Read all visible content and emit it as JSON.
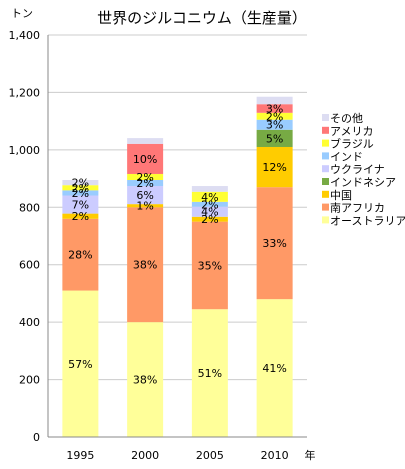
{
  "chart_data": {
    "type": "bar",
    "stacked": true,
    "title": "世界のジルコニウム（生産量）",
    "ylabel": "トン",
    "xlabel": "年",
    "ylim": [
      0,
      1400
    ],
    "yticks": [
      "0",
      "200",
      "400",
      "600",
      "800",
      "1,000",
      "1,200",
      "1,400"
    ],
    "ytick_values": [
      0,
      200,
      400,
      600,
      800,
      1000,
      1200,
      1400
    ],
    "grid": true,
    "legend_position": "right",
    "categories": [
      "1995",
      "2000",
      "2005",
      "2010"
    ],
    "series": [
      {
        "name": "オーストラリア",
        "color": "#ffff99",
        "values": [
          510,
          400,
          445,
          480
        ],
        "labels": [
          "57%",
          "38%",
          "51%",
          "41%"
        ]
      },
      {
        "name": "南アフリカ",
        "color": "#ff9966",
        "values": [
          250,
          400,
          305,
          390
        ],
        "labels": [
          "28%",
          "38%",
          "35%",
          "33%"
        ]
      },
      {
        "name": "中国",
        "color": "#ffcc00",
        "values": [
          18,
          11,
          17,
          140
        ],
        "labels": [
          "2%",
          "1%",
          "2%",
          "12%"
        ]
      },
      {
        "name": "インドネシア",
        "color": "#77aa44",
        "values": [
          0,
          0,
          0,
          60
        ],
        "labels": [
          "",
          "",
          "",
          "5%"
        ]
      },
      {
        "name": "ウクライナ",
        "color": "#ccccff",
        "values": [
          63,
          63,
          35,
          0
        ],
        "labels": [
          "7%",
          "6%",
          "4%",
          ""
        ]
      },
      {
        "name": "インド",
        "color": "#99ccff",
        "values": [
          18,
          21,
          17,
          35
        ],
        "labels": [
          "2%",
          "2%",
          "2%",
          "3%"
        ]
      },
      {
        "name": "ブラジル",
        "color": "#ffff33",
        "values": [
          18,
          21,
          35,
          24
        ],
        "labels": [
          "2%",
          "2%",
          "4%",
          "2%"
        ]
      },
      {
        "name": "アメリカ",
        "color": "#ff7777",
        "values": [
          0,
          105,
          0,
          30
        ],
        "labels": [
          "",
          "10%",
          "",
          "3%"
        ]
      },
      {
        "name": "その他",
        "color": "#ddddf2",
        "values": [
          18,
          20,
          20,
          26
        ],
        "labels": [
          "2%",
          "",
          "",
          ""
        ]
      }
    ],
    "legend_order": [
      "その他",
      "アメリカ",
      "ブラジル",
      "インド",
      "ウクライナ",
      "インドネシア",
      "中国",
      "南アフリカ",
      "オーストラリア"
    ]
  }
}
